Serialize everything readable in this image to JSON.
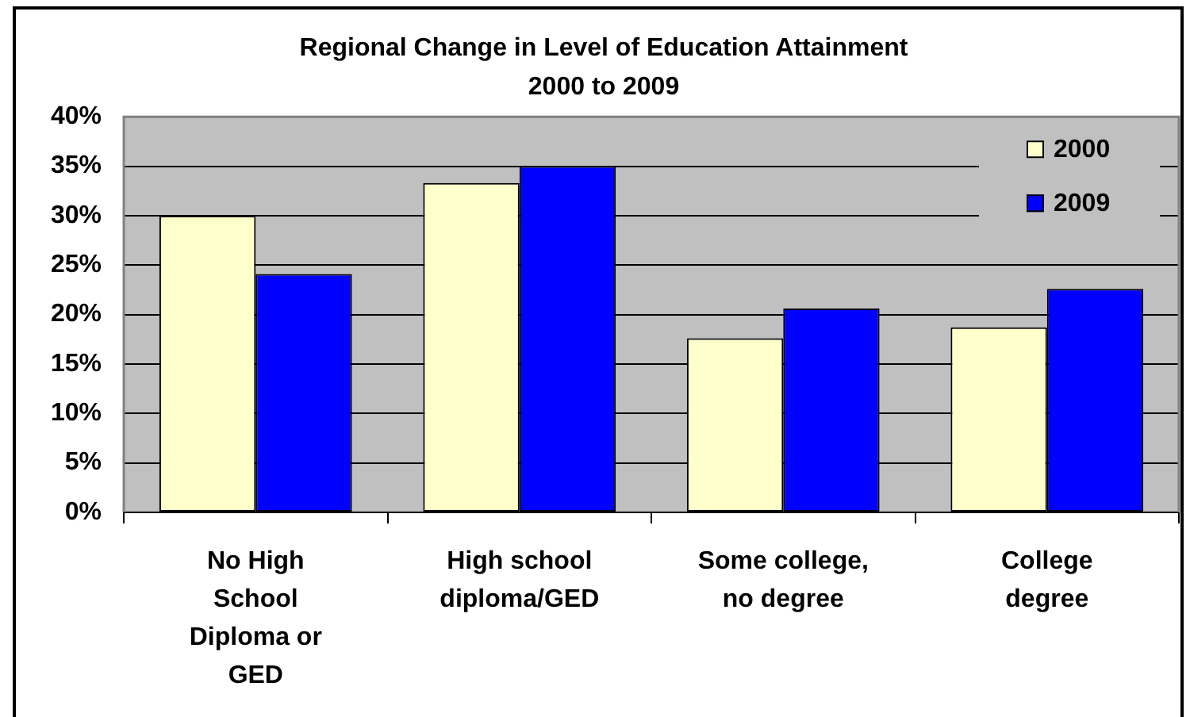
{
  "chart_data": {
    "type": "bar",
    "title": "Regional Change in Level of Education Attainment\n2000 to 2009",
    "categories": [
      "No High School Diploma or GED",
      "High school diploma/GED",
      "Some college, no degree",
      "College degree"
    ],
    "series": [
      {
        "name": "2000",
        "color": "#ffffcc",
        "values": [
          30,
          33.3,
          17.6,
          18.7
        ]
      },
      {
        "name": "2009",
        "color": "#0000ff",
        "values": [
          24.1,
          35,
          20.6,
          22.6
        ]
      }
    ],
    "ylim": [
      0,
      40
    ],
    "yticks": [
      {
        "value": 0,
        "label": "0%"
      },
      {
        "value": 5,
        "label": "5%"
      },
      {
        "value": 10,
        "label": "10%"
      },
      {
        "value": 15,
        "label": "15%"
      },
      {
        "value": 20,
        "label": "20%"
      },
      {
        "value": 25,
        "label": "25%"
      },
      {
        "value": 30,
        "label": "30%"
      },
      {
        "value": 35,
        "label": "35%"
      },
      {
        "value": 40,
        "label": "40%"
      }
    ],
    "grid": "y",
    "legend": "top right"
  }
}
